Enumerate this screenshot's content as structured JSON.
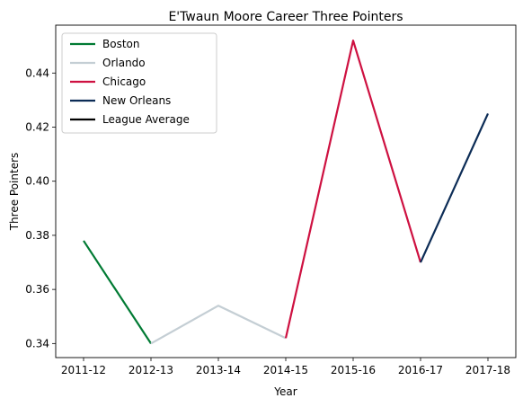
{
  "chart_data": {
    "type": "line",
    "title": "E'Twaun Moore Career Three Pointers",
    "xlabel": "Year",
    "ylabel": "Three Pointers",
    "categories": [
      "2011-12",
      "2012-13",
      "2013-14",
      "2014-15",
      "2015-16",
      "2016-17",
      "2017-18"
    ],
    "ylim": [
      0.3348,
      0.4577
    ],
    "yticks": [
      "0.34",
      "0.36",
      "0.38",
      "0.40",
      "0.42",
      "0.44"
    ],
    "grid": false,
    "legend_position": "upper-left",
    "series": [
      {
        "name": "Boston",
        "color": "#007A33",
        "x": [
          "2011-12",
          "2012-13"
        ],
        "values": [
          0.378,
          0.34
        ]
      },
      {
        "name": "Orlando",
        "color": "#C4CED4",
        "x": [
          "2012-13",
          "2013-14",
          "2014-15"
        ],
        "values": [
          0.34,
          0.354,
          0.342
        ]
      },
      {
        "name": "Chicago",
        "color": "#CE1141",
        "x": [
          "2014-15",
          "2015-16",
          "2016-17"
        ],
        "values": [
          0.342,
          0.452,
          0.37
        ]
      },
      {
        "name": "New Orleans",
        "color": "#0C2C56",
        "x": [
          "2016-17",
          "2017-18"
        ],
        "values": [
          0.37,
          0.425
        ]
      },
      {
        "name": "League Average",
        "color": "#000000",
        "x": [],
        "values": []
      }
    ]
  }
}
